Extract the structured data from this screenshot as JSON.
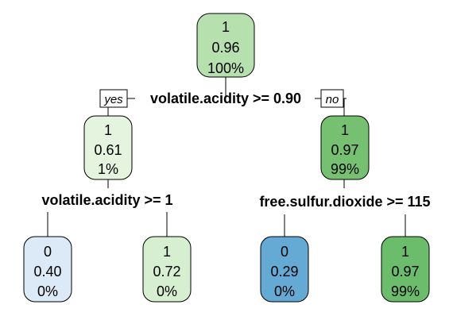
{
  "tree": {
    "nodes": {
      "root": {
        "class": "1",
        "prob": "0.96",
        "pct": "100%",
        "fill": "#b7e0af"
      },
      "left": {
        "class": "1",
        "prob": "0.61",
        "pct": "1%",
        "fill": "#e5f4df"
      },
      "right": {
        "class": "1",
        "prob": "0.97",
        "pct": "99%",
        "fill": "#75c171"
      },
      "leaf_ll": {
        "class": "0",
        "prob": "0.40",
        "pct": "0%",
        "fill": "#dce9f6"
      },
      "leaf_lr": {
        "class": "1",
        "prob": "0.72",
        "pct": "0%",
        "fill": "#d6efd0"
      },
      "leaf_rl": {
        "class": "0",
        "prob": "0.29",
        "pct": "0%",
        "fill": "#65a9d5"
      },
      "leaf_rr": {
        "class": "1",
        "prob": "0.97",
        "pct": "99%",
        "fill": "#6bbd6b"
      }
    },
    "splits": {
      "root": "volatile.acidity >= 0.90",
      "left": "volatile.acidity >= 1",
      "right": "free.sulfur.dioxide >= 115"
    },
    "branch_labels": {
      "yes": "yes",
      "no": "no"
    }
  }
}
